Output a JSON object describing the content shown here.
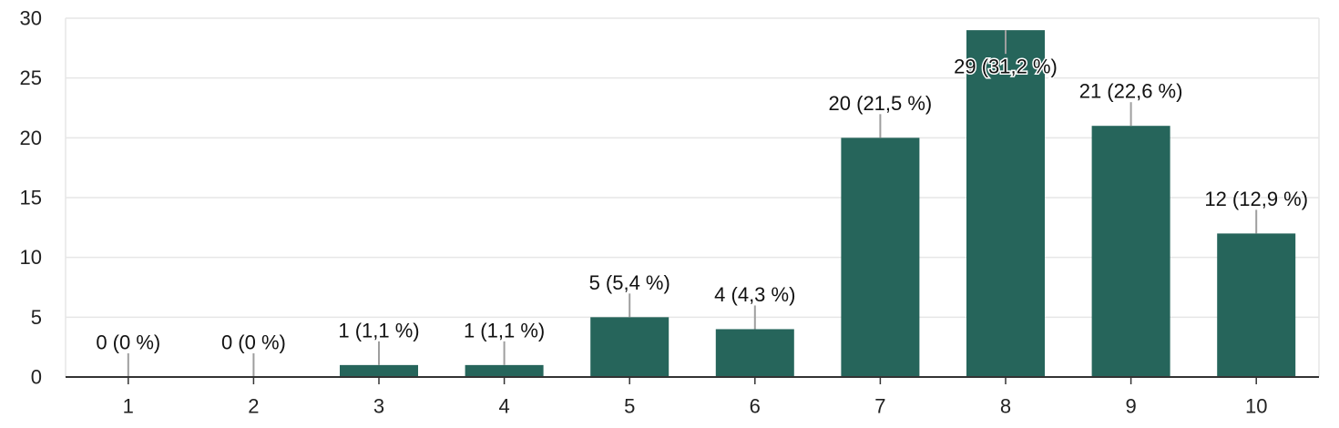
{
  "chart_data": {
    "type": "bar",
    "categories": [
      "1",
      "2",
      "3",
      "4",
      "5",
      "6",
      "7",
      "8",
      "9",
      "10"
    ],
    "values": [
      0,
      0,
      1,
      1,
      5,
      4,
      20,
      29,
      21,
      12
    ],
    "data_labels": [
      "0 (0 %)",
      "0 (0 %)",
      "1 (1,1 %)",
      "1 (1,1 %)",
      "5 (5,4 %)",
      "4 (4,3 %)",
      "20 (21,5 %)",
      "29 (31,2 %)",
      "21 (22,6 %)",
      "12 (12,9 %)"
    ],
    "yticks": [
      "0",
      "5",
      "10",
      "15",
      "20",
      "25",
      "30"
    ],
    "ylim": [
      0,
      30
    ],
    "grid": true,
    "legend": "none",
    "title": "",
    "xlabel": "",
    "ylabel": "",
    "colors": {
      "bar": "#26655b",
      "grid": "#e6e6e6",
      "axis": "#333333",
      "leader": "#9e9e9e"
    }
  }
}
